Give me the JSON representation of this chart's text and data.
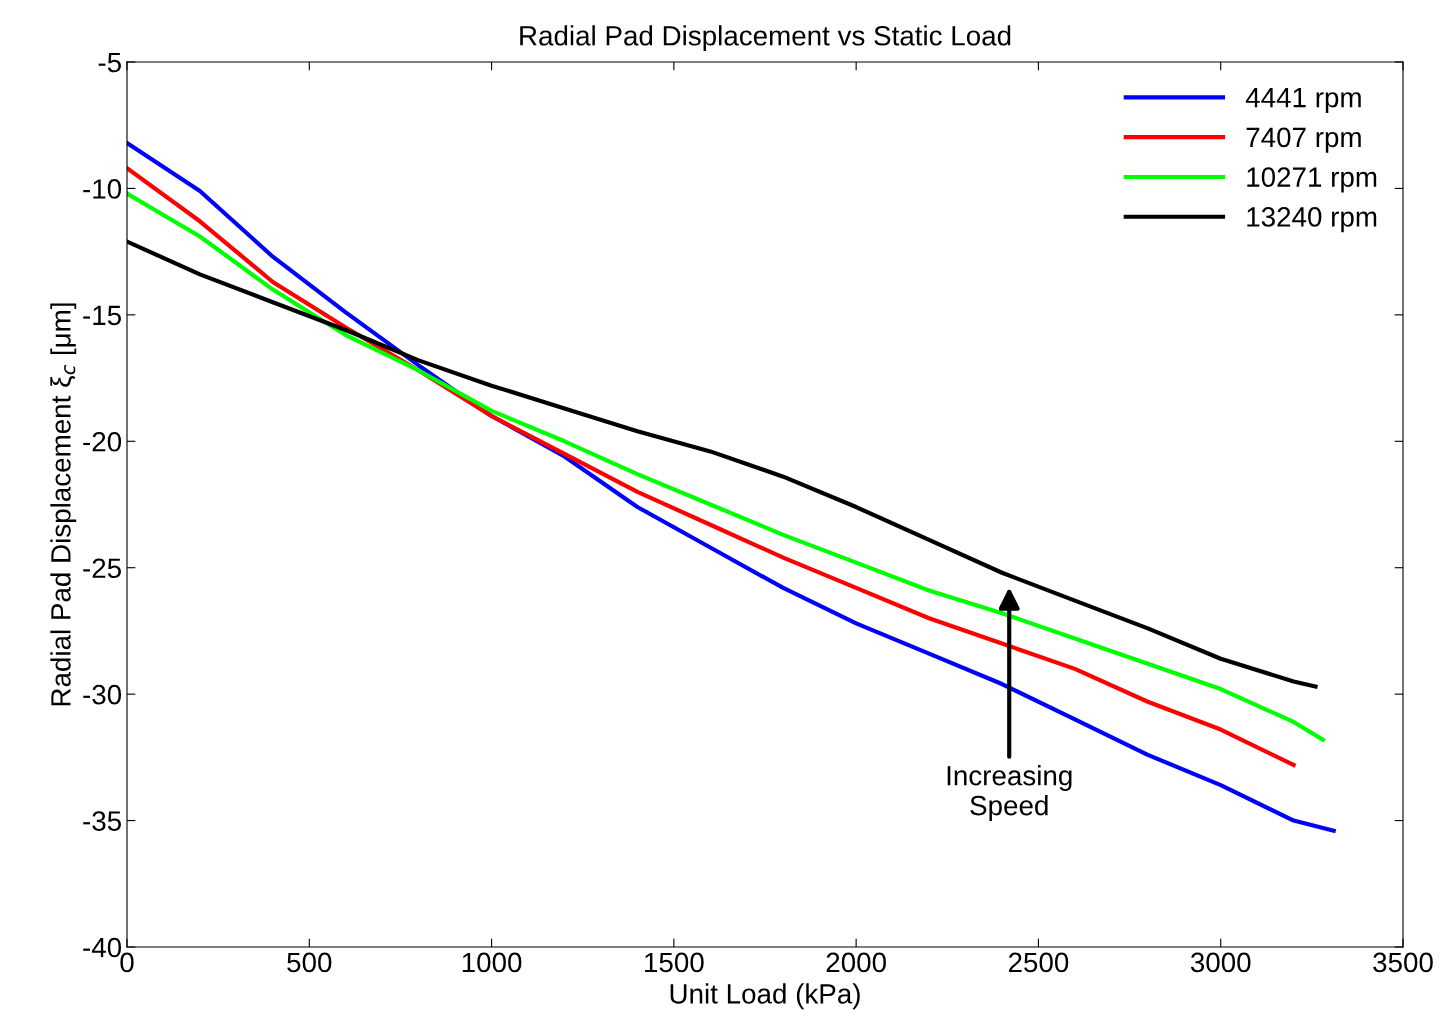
{
  "chart_data": {
    "type": "line",
    "title": "Radial Pad Displacement vs Static Load",
    "xlabel": "Unit Load (kPa)",
    "ylabel": "Radial Pad Displacement ξ$_{c}$ [μm]",
    "xlim": [
      0,
      3500
    ],
    "xticks": [
      0,
      500,
      1000,
      1500,
      2000,
      2500,
      3000,
      3500
    ],
    "ylim": [
      -40,
      -5
    ],
    "yticks": [
      -40,
      -35,
      -30,
      -25,
      -20,
      -15,
      -10,
      -5
    ],
    "grid": false,
    "legend": "top right",
    "marker": "none",
    "line_style": "solid",
    "annotations": [
      "Increasing\nSpeed"
    ],
    "series": [
      {
        "name": "4441 rpm",
        "color": "#0000ff",
        "x": [
          0,
          200,
          400,
          600,
          800,
          1000,
          1200,
          1400,
          1600,
          1800,
          2000,
          2200,
          2400,
          2600,
          2800,
          3000,
          3200,
          3310
        ],
        "values": [
          -8.2,
          -10.1,
          -12.7,
          -14.9,
          -17.0,
          -19.0,
          -20.6,
          -22.6,
          -24.2,
          -25.8,
          -27.2,
          -28.4,
          -29.6,
          -31.0,
          -32.4,
          -33.6,
          -35.0,
          -35.4
        ]
      },
      {
        "name": "7407 rpm",
        "color": "#ff0000",
        "x": [
          0,
          200,
          400,
          600,
          800,
          1000,
          1200,
          1400,
          1600,
          1800,
          2000,
          2200,
          2400,
          2600,
          2800,
          3000,
          3200
        ],
        "values": [
          -9.2,
          -11.3,
          -13.7,
          -15.5,
          -17.2,
          -19.0,
          -20.5,
          -22.0,
          -23.3,
          -24.6,
          -25.8,
          -27.0,
          -28.0,
          -29.0,
          -30.3,
          -31.4,
          -32.8
        ]
      },
      {
        "name": "10271 rpm",
        "color": "#00ff00",
        "x": [
          0,
          200,
          400,
          600,
          800,
          1000,
          1200,
          1400,
          1600,
          1800,
          2000,
          2200,
          2400,
          2600,
          2800,
          3000,
          3200,
          3280
        ],
        "values": [
          -10.2,
          -11.9,
          -14.0,
          -15.8,
          -17.2,
          -18.8,
          -20.0,
          -21.3,
          -22.5,
          -23.7,
          -24.8,
          -25.9,
          -26.8,
          -27.8,
          -28.8,
          -29.8,
          -31.1,
          -31.8
        ]
      },
      {
        "name": "13240 rpm",
        "color": "#000000",
        "x": [
          0,
          200,
          400,
          600,
          800,
          1000,
          1200,
          1400,
          1600,
          1800,
          2000,
          2200,
          2400,
          2600,
          2800,
          3000,
          3200,
          3260
        ],
        "values": [
          -12.1,
          -13.4,
          -14.5,
          -15.6,
          -16.8,
          -17.8,
          -18.7,
          -19.6,
          -20.4,
          -21.4,
          -22.6,
          -23.9,
          -25.2,
          -26.3,
          -27.4,
          -28.6,
          -29.5,
          -29.7
        ]
      }
    ]
  }
}
